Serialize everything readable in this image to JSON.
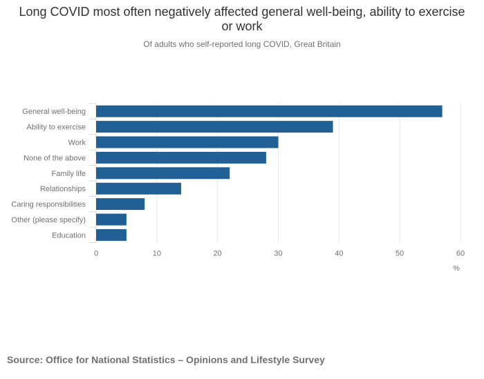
{
  "title": "Long COVID most often negatively affected general well-being, ability to exercise or work",
  "subtitle": "Of adults who self-reported long COVID, Great Britain",
  "source": "Source: Office for National Statistics – Opinions and Lifestyle Survey",
  "colors": {
    "bar": "#206095",
    "grid": "#e6e6e6",
    "axis_text": "#707070"
  },
  "chart_data": {
    "type": "bar",
    "orientation": "horizontal",
    "categories": [
      "General well-being",
      "Ability to exercise",
      "Work",
      "None of the above",
      "Family life",
      "Relationships",
      "Caring responsibilities",
      "Other (please specify)",
      "Education"
    ],
    "values": [
      57,
      39,
      30,
      28,
      22,
      14,
      8,
      5,
      5
    ],
    "xlabel": "%",
    "ylabel": "",
    "xlim": [
      0,
      60
    ],
    "xticks": [
      0,
      10,
      20,
      30,
      40,
      50,
      60
    ],
    "grid": true
  }
}
